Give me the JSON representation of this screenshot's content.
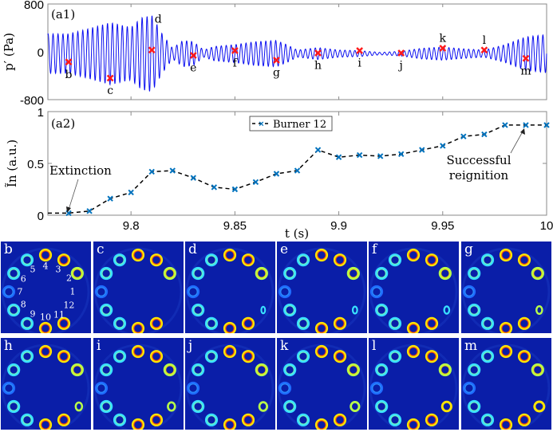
{
  "chart_data": [
    {
      "type": "line",
      "panel_label": "(a1)",
      "ylabel": "p′ (Pa)",
      "xlabel": "",
      "ylim": [
        -800,
        800
      ],
      "xlim": [
        9.76,
        10.0
      ],
      "yticks": [
        "800",
        "0",
        "-800"
      ],
      "ytick_values": [
        800,
        0,
        -800
      ],
      "xtick_values": [
        9.8,
        9.85,
        9.9,
        9.95,
        10.0
      ],
      "series_color": "#0b0ff0",
      "marker_color": "#ff1a1a",
      "envelope": {
        "description": "pressure oscillation amplitude envelope (approx, Pa)",
        "t": [
          9.76,
          9.77,
          9.78,
          9.79,
          9.8,
          9.805,
          9.81,
          9.815,
          9.82,
          9.825,
          9.83,
          9.835,
          9.84,
          9.85,
          9.86,
          9.87,
          9.875,
          9.88,
          9.89,
          9.9,
          9.91,
          9.92,
          9.93,
          9.94,
          9.95,
          9.96,
          9.97,
          9.98,
          9.99,
          10.0
        ],
        "amp": [
          330,
          330,
          420,
          520,
          440,
          600,
          640,
          330,
          90,
          220,
          200,
          60,
          120,
          150,
          200,
          220,
          150,
          60,
          100,
          60,
          50,
          20,
          40,
          90,
          110,
          80,
          60,
          150,
          280,
          320
        ]
      },
      "markers": [
        {
          "label": "b",
          "t": 9.77,
          "p": -170,
          "label_pos": "below"
        },
        {
          "label": "c",
          "t": 9.79,
          "p": -440,
          "label_pos": "below"
        },
        {
          "label": "d",
          "t": 9.81,
          "p": 30,
          "label_pos": "above-right"
        },
        {
          "label": "e",
          "t": 9.83,
          "p": -60,
          "label_pos": "below"
        },
        {
          "label": "f",
          "t": 9.85,
          "p": 20,
          "label_pos": "below"
        },
        {
          "label": "g",
          "t": 9.87,
          "p": -140,
          "label_pos": "below"
        },
        {
          "label": "h",
          "t": 9.89,
          "p": -20,
          "label_pos": "below"
        },
        {
          "label": "i",
          "t": 9.91,
          "p": 20,
          "label_pos": "below"
        },
        {
          "label": "j",
          "t": 9.93,
          "p": -20,
          "label_pos": "below"
        },
        {
          "label": "k",
          "t": 9.95,
          "p": 60,
          "label_pos": "above"
        },
        {
          "label": "l",
          "t": 9.97,
          "p": 30,
          "label_pos": "above"
        },
        {
          "label": "m",
          "t": 9.99,
          "p": -110,
          "label_pos": "below"
        }
      ]
    },
    {
      "type": "line",
      "panel_label": "(a2)",
      "ylabel": "Ĩn (a.u.)",
      "xlabel": "t (s)",
      "ylim": [
        0,
        1
      ],
      "xlim": [
        9.76,
        10.0
      ],
      "yticks": [
        "1",
        "0.5",
        "0"
      ],
      "ytick_values": [
        1,
        0.5,
        0
      ],
      "xticks": [
        "9.8",
        "9.85",
        "9.9",
        "9.95",
        "10"
      ],
      "xtick_values": [
        9.8,
        9.85,
        9.9,
        9.95,
        10.0
      ],
      "legend": {
        "entries": [
          "Burner 12"
        ],
        "placement": "top-center"
      },
      "series": [
        {
          "name": "Burner 12",
          "color": "#0072bd",
          "line_color": "#000000",
          "line_style": "dashed",
          "marker": "x",
          "line_start": {
            "t": 9.76,
            "v": 0.02
          },
          "x": [
            9.77,
            9.78,
            9.79,
            9.8,
            9.81,
            9.82,
            9.83,
            9.84,
            9.85,
            9.86,
            9.87,
            9.88,
            9.89,
            9.9,
            9.91,
            9.92,
            9.93,
            9.94,
            9.95,
            9.96,
            9.97,
            9.98,
            9.99,
            10.0
          ],
          "values": [
            0.02,
            0.04,
            0.16,
            0.22,
            0.42,
            0.43,
            0.36,
            0.27,
            0.25,
            0.32,
            0.4,
            0.43,
            0.63,
            0.56,
            0.58,
            0.57,
            0.59,
            0.63,
            0.67,
            0.76,
            0.78,
            0.87,
            0.87,
            0.87
          ]
        }
      ],
      "annotations": [
        {
          "text": "Extinction",
          "points_to": {
            "t": 9.77,
            "v": 0.02
          }
        },
        {
          "text_lines": [
            "Successful",
            "reignition"
          ],
          "points_to": {
            "t": 9.99,
            "v": 0.87
          }
        }
      ]
    }
  ],
  "image_grid": {
    "description": "OH* chemiluminescence images of 12 burners at instants b–m",
    "panels": [
      {
        "label": "b",
        "burner_numbers": [
          "1",
          "2",
          "3",
          "4",
          "5",
          "6",
          "7",
          "8",
          "9",
          "10",
          "11",
          "12"
        ]
      },
      {
        "label": "c"
      },
      {
        "label": "d"
      },
      {
        "label": "e"
      },
      {
        "label": "f"
      },
      {
        "label": "g"
      },
      {
        "label": "h"
      },
      {
        "label": "i"
      },
      {
        "label": "j"
      },
      {
        "label": "k"
      },
      {
        "label": "l"
      },
      {
        "label": "m"
      }
    ],
    "background_color": "#0a1ea8"
  }
}
